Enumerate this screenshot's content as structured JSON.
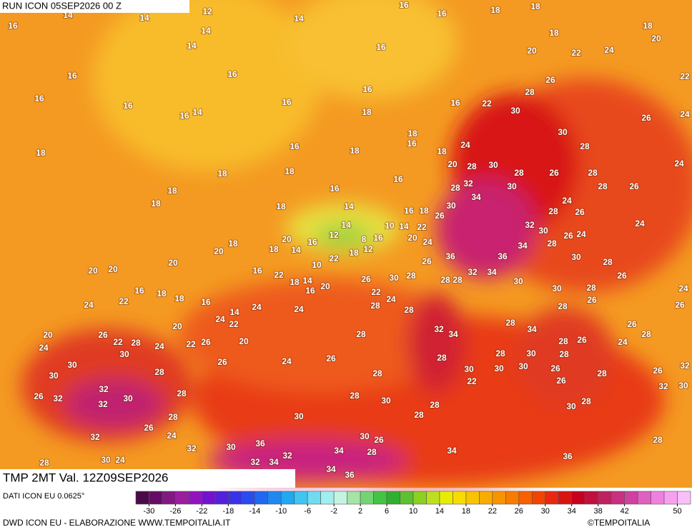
{
  "header": {
    "run": "RUN ICON 05SEP2026 00 Z"
  },
  "map": {
    "title": "TMP 2MT Val. 12Z09SEP2026",
    "labels": [
      14,
      12,
      16,
      16,
      18,
      18,
      16,
      14,
      14,
      14,
      18,
      18,
      20,
      14,
      16,
      20,
      22,
      24,
      16,
      16,
      16,
      26,
      22,
      16,
      16,
      16,
      16,
      22,
      28,
      30,
      16,
      14,
      18,
      26,
      24,
      30,
      18,
      16,
      24,
      18,
      16,
      18,
      18,
      28,
      20,
      28,
      30,
      28,
      26,
      28,
      24,
      18,
      18,
      16,
      28,
      32,
      30,
      28,
      26,
      18,
      16,
      34,
      24,
      18,
      18,
      14,
      16,
      18,
      26,
      30,
      28,
      26,
      24,
      14,
      10,
      14,
      22,
      32,
      30,
      26,
      24,
      20,
      12,
      8,
      16,
      20,
      24,
      18,
      20,
      18,
      14,
      16,
      18,
      12,
      34,
      28,
      36,
      36,
      30,
      22,
      26,
      20,
      20,
      20,
      16,
      22,
      10,
      28,
      26,
      30,
      28,
      28,
      28,
      32,
      34,
      30,
      26,
      18,
      14,
      16,
      20,
      30,
      28,
      24,
      16,
      18,
      18,
      16,
      22,
      24,
      26,
      24,
      22,
      24,
      24,
      28,
      28,
      28,
      26,
      14,
      24,
      22,
      20,
      28,
      34,
      26,
      32,
      34,
      28,
      20,
      26,
      22,
      28,
      24,
      22,
      26,
      20,
      28,
      26,
      24,
      28,
      24,
      30,
      28,
      30,
      28,
      26,
      24,
      26,
      30,
      28,
      30,
      26,
      32,
      30,
      30,
      26,
      28,
      30,
      28,
      28,
      26,
      32,
      30,
      32,
      28,
      22,
      26,
      32,
      32,
      30,
      28,
      30,
      28,
      30,
      28,
      28,
      28,
      30,
      26,
      24,
      32,
      30,
      26,
      28,
      32,
      30,
      36,
      34,
      28,
      34,
      32,
      34,
      32,
      30,
      24,
      28,
      36,
      34,
      36
    ]
  },
  "footer": {
    "source": "DATI ICON EU 0.0625°",
    "credit": "DWD ICON EU - ELABORAZIONE WWW.TEMPOITALIA.IT",
    "brand": "©TEMPOITALIA"
  },
  "colorbar": {
    "range": [
      -32,
      52
    ],
    "ticks": [
      -30,
      -26,
      -22,
      -18,
      -14,
      -10,
      -6,
      -2,
      2,
      6,
      10,
      14,
      18,
      22,
      26,
      30,
      34,
      38,
      42,
      50
    ],
    "colors": [
      "#4a0a4a",
      "#660c66",
      "#821882",
      "#9a1e9e",
      "#9214be",
      "#7412d0",
      "#5420dc",
      "#3a32e6",
      "#2a4cee",
      "#2068f0",
      "#2088f0",
      "#20a8f0",
      "#40c4f0",
      "#70dcf0",
      "#a0eef0",
      "#c4f4e0",
      "#a4e4a4",
      "#74d474",
      "#44c444",
      "#30b030",
      "#5cc030",
      "#8cd020",
      "#bce020",
      "#e8ec00",
      "#f8dc00",
      "#f8c400",
      "#f8ac00",
      "#f89400",
      "#f87c00",
      "#f86000",
      "#f04400",
      "#e82810",
      "#d81410",
      "#c80020",
      "#c01040",
      "#c02060",
      "#c83080",
      "#d040a0",
      "#e060c0",
      "#f080e0",
      "#f8a0f0",
      "#f8c0f8"
    ]
  }
}
